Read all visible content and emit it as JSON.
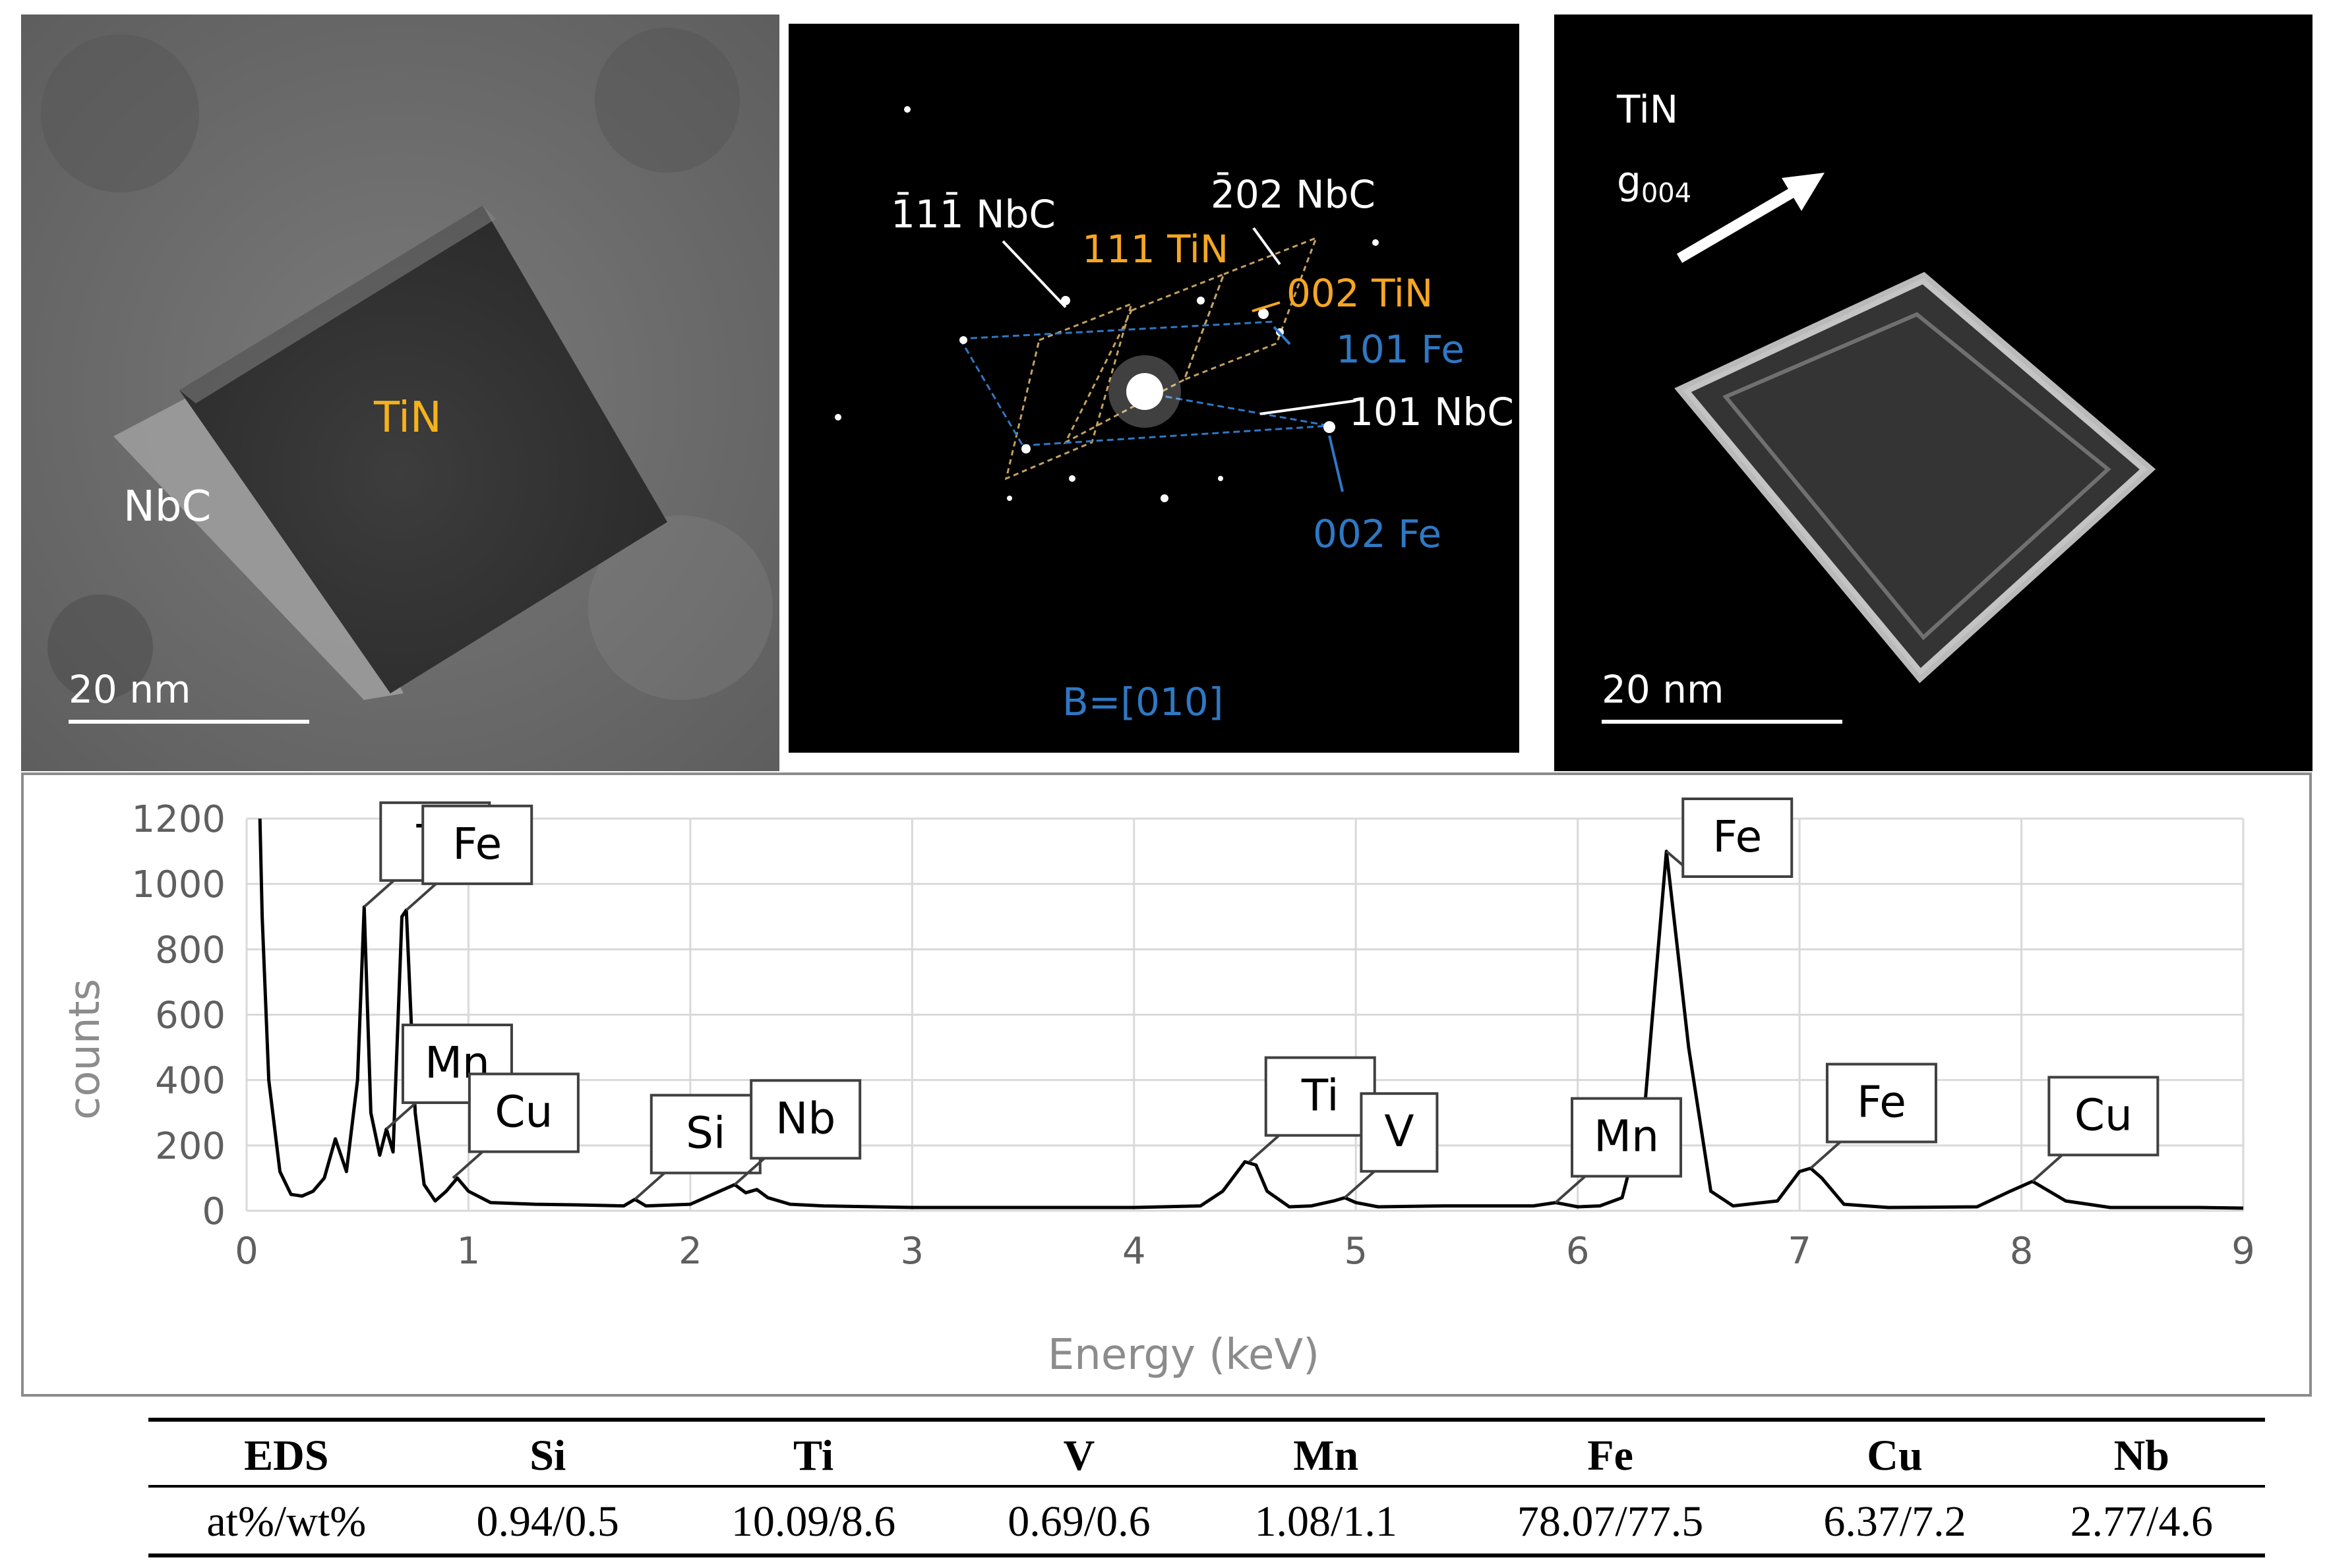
{
  "panel_bright_field": {
    "label_tin": "TiN",
    "label_nbc": "NbC",
    "scale_bar": "20 nm",
    "colors": {
      "tin_label": "#f5b21b",
      "nbc_label": "#ffffff"
    }
  },
  "panel_diffraction": {
    "labels": {
      "nbc_111bar": "1̄11̄ NbC",
      "nbc_202bar": "2̄02 NbC",
      "tin_111": "111 TiN",
      "tin_002": "002 TiN",
      "fe_101": "101 Fe",
      "nbc_101": "101 NbC",
      "fe_002": "002 Fe",
      "zone_axis": "B=[010]"
    },
    "colors": {
      "nbc": "#ffffff",
      "tin": "#f5a623",
      "fe": "#2f78c4"
    }
  },
  "panel_dark_field": {
    "label_tin": "TiN",
    "g_vector": "g",
    "g_subscript": "004",
    "scale_bar": "20 nm"
  },
  "chart_data": {
    "type": "line",
    "xlabel": "Energy (keV)",
    "ylabel": "counts",
    "xlim": [
      0,
      9
    ],
    "ylim": [
      0,
      1200
    ],
    "xticks": [
      0,
      1,
      2,
      3,
      4,
      5,
      6,
      7,
      8,
      9
    ],
    "yticks": [
      0,
      200,
      400,
      600,
      800,
      1000,
      1200
    ],
    "grid": true,
    "series": [
      {
        "x": [
          0.06,
          0.07,
          0.1,
          0.15,
          0.2,
          0.25,
          0.3,
          0.35,
          0.4,
          0.45,
          0.5,
          0.53,
          0.56,
          0.6,
          0.63,
          0.66,
          0.7,
          0.72,
          0.76,
          0.8,
          0.85,
          0.9,
          0.95,
          1.0,
          1.1,
          1.3,
          1.5,
          1.7,
          1.75,
          1.8,
          2.0,
          2.1,
          2.2,
          2.25,
          2.3,
          2.35,
          2.45,
          2.6,
          3.0,
          3.5,
          4.0,
          4.3,
          4.4,
          4.5,
          4.55,
          4.6,
          4.7,
          4.8,
          4.9,
          4.95,
          5.0,
          5.1,
          5.4,
          5.8,
          5.9,
          6.0,
          6.1,
          6.2,
          6.3,
          6.4,
          6.5,
          6.6,
          6.7,
          6.9,
          7.0,
          7.05,
          7.1,
          7.2,
          7.4,
          7.8,
          7.95,
          8.05,
          8.2,
          8.4,
          8.8,
          9.0
        ],
        "y": [
          1200,
          900,
          400,
          120,
          50,
          45,
          60,
          100,
          220,
          120,
          400,
          930,
          300,
          170,
          250,
          180,
          900,
          920,
          300,
          80,
          30,
          60,
          100,
          60,
          25,
          20,
          18,
          15,
          35,
          15,
          20,
          50,
          80,
          55,
          65,
          40,
          20,
          15,
          10,
          10,
          10,
          15,
          60,
          150,
          140,
          60,
          12,
          15,
          30,
          40,
          25,
          12,
          15,
          15,
          25,
          12,
          15,
          40,
          300,
          1100,
          500,
          60,
          15,
          30,
          120,
          130,
          100,
          20,
          10,
          12,
          60,
          90,
          30,
          10,
          10,
          8
        ]
      }
    ],
    "annotations": [
      {
        "text": "Ti",
        "x": 0.53,
        "y": 930
      },
      {
        "text": "Fe",
        "x": 0.72,
        "y": 920
      },
      {
        "text": "Mn",
        "x": 0.63,
        "y": 250
      },
      {
        "text": "Cu",
        "x": 0.93,
        "y": 100
      },
      {
        "text": "Si",
        "x": 1.75,
        "y": 35
      },
      {
        "text": "Nb",
        "x": 2.2,
        "y": 80
      },
      {
        "text": "Ti",
        "x": 4.52,
        "y": 150
      },
      {
        "text": "V",
        "x": 4.95,
        "y": 40
      },
      {
        "text": "Mn",
        "x": 5.9,
        "y": 25
      },
      {
        "text": "Fe",
        "x": 6.4,
        "y": 1100
      },
      {
        "text": "Fe",
        "x": 7.05,
        "y": 130
      },
      {
        "text": "Cu",
        "x": 8.05,
        "y": 90
      }
    ]
  },
  "eds_table": {
    "headers": [
      "EDS",
      "Si",
      "Ti",
      "V",
      "Mn",
      "Fe",
      "Cu",
      "Nb"
    ],
    "rows": [
      [
        "at%/wt%",
        "0.94/0.5",
        "10.09/8.6",
        "0.69/0.6",
        "1.08/1.1",
        "78.07/77.5",
        "6.37/7.2",
        "2.77/4.6"
      ]
    ]
  }
}
